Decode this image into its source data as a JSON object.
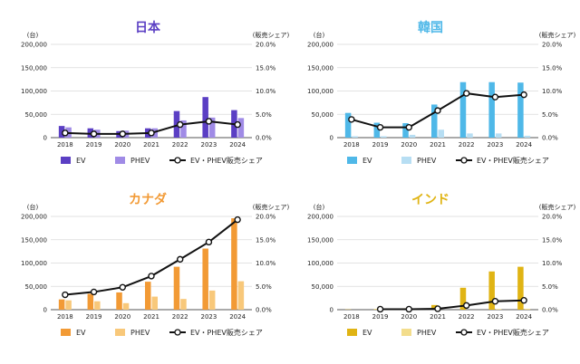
{
  "chart_data": [
    {
      "type": "bar",
      "title": "日本",
      "title_color": "#5B3FC4",
      "categories": [
        "2018",
        "2019",
        "2020",
        "2021",
        "2022",
        "2023",
        "2024"
      ],
      "ylabel_left": "(台)",
      "ylabel_right": "(販売シェア)",
      "yticks_left": [
        "0",
        "50,000",
        "100,000",
        "150,000",
        "200,000"
      ],
      "yticks_right": [
        "0.0%",
        "5.0%",
        "10.0%",
        "15.0%",
        "20.0%"
      ],
      "ylim_left": [
        0,
        200000
      ],
      "ylim_right": [
        0,
        20
      ],
      "grid": true,
      "legend_position": "bottom",
      "series": [
        {
          "name": "EV",
          "kind": "bar",
          "axis": "left",
          "color": "#5B3FC4",
          "values": [
            25000,
            20000,
            14000,
            20000,
            57000,
            87000,
            59000
          ]
        },
        {
          "name": "PHEV",
          "kind": "bar",
          "axis": "left",
          "color": "#A08BE6",
          "values": [
            22000,
            17000,
            15000,
            20000,
            37000,
            43000,
            42000
          ]
        },
        {
          "name": "EV・PHEV販売シェア",
          "kind": "line",
          "axis": "right",
          "color": "#111111",
          "values": [
            1.0,
            0.8,
            0.8,
            1.0,
            2.8,
            3.5,
            2.8
          ]
        }
      ]
    },
    {
      "type": "bar",
      "title": "韓国",
      "title_color": "#4FB8E8",
      "categories": [
        "2018",
        "2019",
        "2020",
        "2021",
        "2022",
        "2023",
        "2024"
      ],
      "ylabel_left": "(台)",
      "ylabel_right": "(販売シェア)",
      "yticks_left": [
        "0",
        "50,000",
        "100,000",
        "150,000",
        "200,000"
      ],
      "yticks_right": [
        "0.0%",
        "5.0%",
        "10.0%",
        "15.0%",
        "20.0%"
      ],
      "ylim_left": [
        0,
        200000
      ],
      "ylim_right": [
        0,
        20
      ],
      "grid": true,
      "legend_position": "bottom",
      "series": [
        {
          "name": "EV",
          "kind": "bar",
          "axis": "left",
          "color": "#4FB8E8",
          "values": [
            53000,
            32000,
            31000,
            71000,
            119000,
            119000,
            118000
          ]
        },
        {
          "name": "PHEV",
          "kind": "bar",
          "axis": "left",
          "color": "#B7DEF3",
          "values": [
            3000,
            3000,
            6000,
            17000,
            9000,
            9000,
            4000
          ]
        },
        {
          "name": "EV・PHEV販売シェア",
          "kind": "line",
          "axis": "right",
          "color": "#111111",
          "values": [
            3.9,
            2.2,
            2.2,
            5.8,
            9.5,
            8.7,
            9.2
          ]
        }
      ]
    },
    {
      "type": "bar",
      "title": "カナダ",
      "title_color": "#F29A35",
      "categories": [
        "2018",
        "2019",
        "2020",
        "2021",
        "2022",
        "2023",
        "2024"
      ],
      "ylabel_left": "(台)",
      "ylabel_right": "(販売シェア)",
      "yticks_left": [
        "0",
        "50,000",
        "100,000",
        "150,000",
        "200,000"
      ],
      "yticks_right": [
        "0.0%",
        "5.0%",
        "10.0%",
        "15.0%",
        "20.0%"
      ],
      "ylim_left": [
        0,
        200000
      ],
      "ylim_right": [
        0,
        20
      ],
      "grid": true,
      "legend_position": "bottom",
      "series": [
        {
          "name": "EV",
          "kind": "bar",
          "axis": "left",
          "color": "#F29A35",
          "values": [
            22000,
            34000,
            37000,
            60000,
            92000,
            131000,
            196000
          ]
        },
        {
          "name": "PHEV",
          "kind": "bar",
          "axis": "left",
          "color": "#F8C87A",
          "values": [
            20000,
            18000,
            14000,
            28000,
            23000,
            41000,
            61000
          ]
        },
        {
          "name": "EV・PHEV販売シェア",
          "kind": "line",
          "axis": "right",
          "color": "#111111",
          "values": [
            3.2,
            3.8,
            4.8,
            7.2,
            10.8,
            14.5,
            19.3
          ]
        }
      ]
    },
    {
      "type": "bar",
      "title": "インド",
      "title_color": "#E0B414",
      "categories": [
        "2018",
        "2019",
        "2020",
        "2021",
        "2022",
        "2023",
        "2024"
      ],
      "ylabel_left": "(台)",
      "ylabel_right": "(販売シェア)",
      "yticks_left": [
        "0",
        "50,000",
        "100,000",
        "150,000",
        "200,000"
      ],
      "yticks_right": [
        "0.0%",
        "5.0%",
        "10.0%",
        "15.0%",
        "20.0%"
      ],
      "ylim_left": [
        0,
        200000
      ],
      "ylim_right": [
        0,
        20
      ],
      "grid": true,
      "legend_position": "bottom",
      "series": [
        {
          "name": "EV",
          "kind": "bar",
          "axis": "left",
          "color": "#E0B414",
          "values": [
            500,
            1000,
            3000,
            10000,
            47000,
            82000,
            92000
          ]
        },
        {
          "name": "PHEV",
          "kind": "bar",
          "axis": "left",
          "color": "#F3DD8C",
          "values": [
            0,
            0,
            0,
            0,
            0,
            1500,
            2000
          ]
        },
        {
          "name": "EV・PHEV販売シェア",
          "kind": "line",
          "axis": "right",
          "color": "#111111",
          "values": [
            null,
            0.1,
            0.1,
            0.2,
            0.9,
            1.8,
            2.0
          ]
        }
      ]
    }
  ]
}
